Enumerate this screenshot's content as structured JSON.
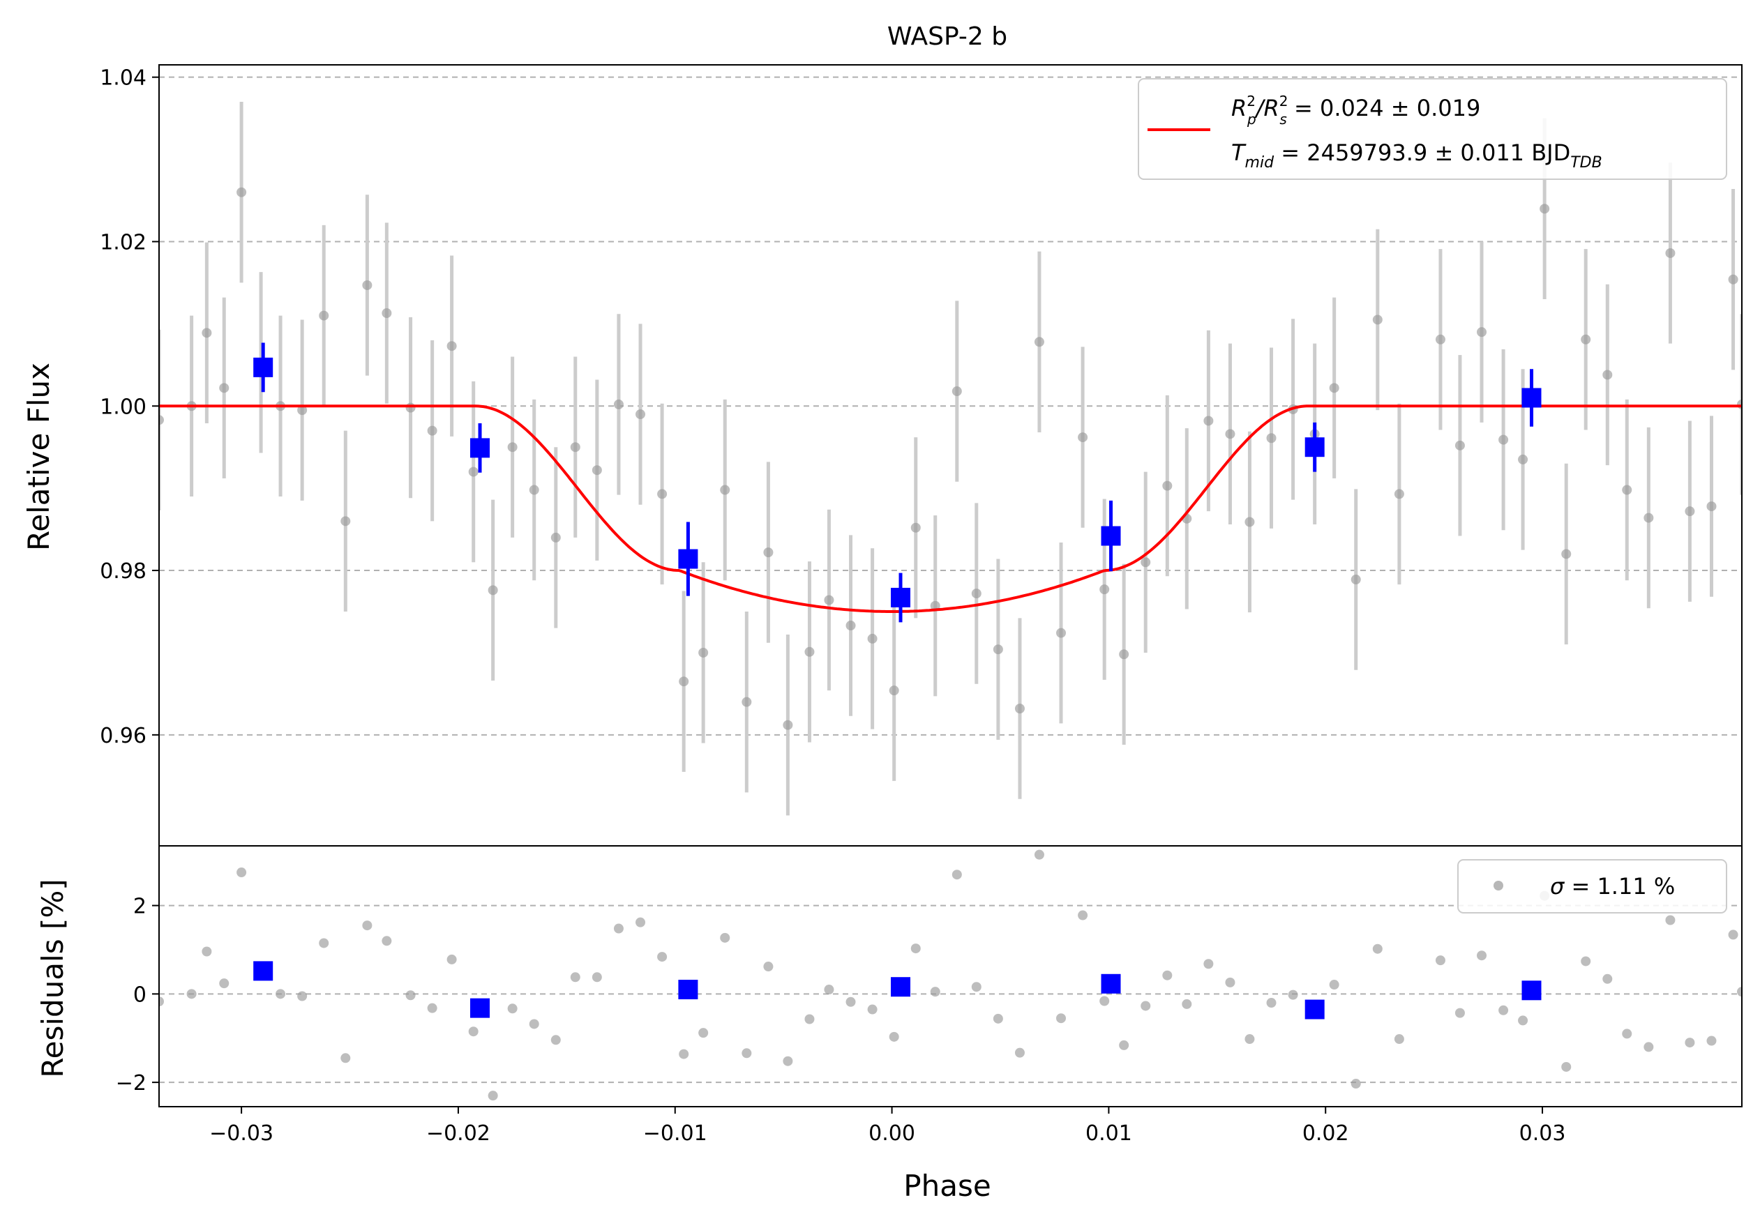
{
  "chart_data": {
    "type": "scatter",
    "title": "WASP-2 b",
    "xlabel": "Phase",
    "xlim": [
      -0.0338,
      0.0392
    ],
    "xticks": [
      {
        "v": -0.03,
        "label": "−0.03"
      },
      {
        "v": -0.02,
        "label": "−0.02"
      },
      {
        "v": -0.01,
        "label": "−0.01"
      },
      {
        "v": 0.0,
        "label": "0.00"
      },
      {
        "v": 0.01,
        "label": "0.01"
      },
      {
        "v": 0.02,
        "label": "0.02"
      },
      {
        "v": 0.03,
        "label": "0.03"
      }
    ],
    "top_panel": {
      "ylabel": "Relative Flux",
      "ylim": [
        0.9465,
        1.0415
      ],
      "yticks": [
        {
          "v": 0.96,
          "label": "0.96"
        },
        {
          "v": 0.98,
          "label": "0.98"
        },
        {
          "v": 1.0,
          "label": "1.00"
        },
        {
          "v": 1.02,
          "label": "1.02"
        },
        {
          "v": 1.04,
          "label": "1.04"
        }
      ],
      "grid": "horizontal-dashed",
      "legend": {
        "position": "top-right",
        "line1": {
          "prefix": "R",
          "sub1": "p",
          "sup1": "2",
          "mid": "/R",
          "sub2": "s",
          "sup2": "2",
          "value": " = 0.024 ± 0.019"
        },
        "line2": {
          "prefix": "T",
          "sub1": "mid",
          "value": " = 2459793.9 ± 0.011 BJD",
          "sub2": "TDB"
        }
      },
      "raw_points": [
        [
          -0.0338,
          0.9983,
          0.011
        ],
        [
          -0.0323,
          1.0,
          0.011
        ],
        [
          -0.0316,
          1.0089,
          0.011
        ],
        [
          -0.0308,
          1.0022,
          0.011
        ],
        [
          -0.03,
          1.026,
          0.011
        ],
        [
          -0.0291,
          1.0053,
          0.011
        ],
        [
          -0.0282,
          1.0,
          0.011
        ],
        [
          -0.0272,
          0.9995,
          0.011
        ],
        [
          -0.0262,
          1.011,
          0.011
        ],
        [
          -0.0252,
          0.986,
          0.011
        ],
        [
          -0.0242,
          1.0147,
          0.011
        ],
        [
          -0.0233,
          1.0113,
          0.011
        ],
        [
          -0.0222,
          0.9998,
          0.011
        ],
        [
          -0.0212,
          0.997,
          0.011
        ],
        [
          -0.0203,
          1.0073,
          0.011
        ],
        [
          -0.0193,
          0.992,
          0.011
        ],
        [
          -0.0184,
          0.9776,
          0.011
        ],
        [
          -0.0175,
          0.995,
          0.011
        ],
        [
          -0.0165,
          0.9898,
          0.011
        ],
        [
          -0.0155,
          0.984,
          0.011
        ],
        [
          -0.0146,
          0.995,
          0.011
        ],
        [
          -0.0136,
          0.9922,
          0.011
        ],
        [
          -0.0126,
          1.0002,
          0.011
        ],
        [
          -0.0116,
          0.999,
          0.011
        ],
        [
          -0.0106,
          0.9893,
          0.011
        ],
        [
          -0.0096,
          0.9665,
          0.011
        ],
        [
          -0.0087,
          0.97,
          0.011
        ],
        [
          -0.0077,
          0.9898,
          0.011
        ],
        [
          -0.0067,
          0.964,
          0.011
        ],
        [
          -0.0057,
          0.9822,
          0.011
        ],
        [
          -0.0048,
          0.9612,
          0.011
        ],
        [
          -0.0038,
          0.9701,
          0.011
        ],
        [
          -0.0029,
          0.9764,
          0.011
        ],
        [
          -0.0019,
          0.9733,
          0.011
        ],
        [
          -0.0009,
          0.9717,
          0.011
        ],
        [
          0.0001,
          0.9654,
          0.011
        ],
        [
          0.0011,
          0.9852,
          0.011
        ],
        [
          0.002,
          0.9757,
          0.011
        ],
        [
          0.003,
          1.0018,
          0.011
        ],
        [
          0.0039,
          0.9772,
          0.011
        ],
        [
          0.0049,
          0.9704,
          0.011
        ],
        [
          0.0059,
          0.9632,
          0.011
        ],
        [
          0.0068,
          1.0078,
          0.011
        ],
        [
          0.0078,
          0.9724,
          0.011
        ],
        [
          0.0088,
          0.9962,
          0.011
        ],
        [
          0.0098,
          0.9777,
          0.011
        ],
        [
          0.0107,
          0.9698,
          0.011
        ],
        [
          0.0117,
          0.981,
          0.011
        ],
        [
          0.0127,
          0.9903,
          0.011
        ],
        [
          0.0136,
          0.9863,
          0.011
        ],
        [
          0.0146,
          0.9982,
          0.011
        ],
        [
          0.0156,
          0.9966,
          0.011
        ],
        [
          0.0165,
          0.9859,
          0.011
        ],
        [
          0.0175,
          0.9961,
          0.011
        ],
        [
          0.0185,
          0.9996,
          0.011
        ],
        [
          0.0195,
          0.9966,
          0.011
        ],
        [
          0.0204,
          1.0022,
          0.011
        ],
        [
          0.0214,
          0.9789,
          0.011
        ],
        [
          0.0224,
          1.0105,
          0.011
        ],
        [
          0.0234,
          0.9893,
          0.011
        ],
        [
          0.0253,
          1.0081,
          0.011
        ],
        [
          0.0262,
          0.9952,
          0.011
        ],
        [
          0.0272,
          1.009,
          0.011
        ],
        [
          0.0282,
          0.9959,
          0.011
        ],
        [
          0.0291,
          0.9935,
          0.011
        ],
        [
          0.0301,
          1.024,
          0.011
        ],
        [
          0.0311,
          0.982,
          0.011
        ],
        [
          0.032,
          1.0081,
          0.011
        ],
        [
          0.033,
          1.0038,
          0.011
        ],
        [
          0.0339,
          0.9898,
          0.011
        ],
        [
          0.0349,
          0.9864,
          0.011
        ],
        [
          0.0359,
          1.0186,
          0.011
        ],
        [
          0.0368,
          0.9872,
          0.011
        ],
        [
          0.0378,
          0.9878,
          0.011
        ],
        [
          0.0388,
          1.0154,
          0.011
        ],
        [
          0.0392,
          1.0002,
          0.011
        ]
      ],
      "binned_points": [
        [
          -0.029,
          1.0047,
          0.003
        ],
        [
          -0.019,
          0.9949,
          0.003
        ],
        [
          -0.0094,
          0.9814,
          0.0045
        ],
        [
          0.0004,
          0.9767,
          0.003
        ],
        [
          0.0101,
          0.9842,
          0.0043
        ],
        [
          0.0195,
          0.995,
          0.003
        ],
        [
          0.0295,
          1.001,
          0.0035
        ]
      ],
      "model": {
        "depth": 0.025,
        "t1": 0.0192,
        "t2": 0.0098,
        "color": "#ff0000"
      }
    },
    "bottom_panel": {
      "ylabel": "Residuals [%]",
      "ylim": [
        -2.55,
        3.35
      ],
      "yticks": [
        {
          "v": -2,
          "label": "−2"
        },
        {
          "v": 0,
          "label": "0"
        },
        {
          "v": 2,
          "label": "2"
        }
      ],
      "grid": "horizontal-dashed",
      "legend": {
        "position": "top-right",
        "symbol": "σ",
        "value": " = 1.11 %"
      },
      "raw_residuals": [
        [
          -0.0338,
          -0.17
        ],
        [
          -0.0323,
          0.0
        ],
        [
          -0.0316,
          0.96
        ],
        [
          -0.0308,
          0.24
        ],
        [
          -0.03,
          2.75
        ],
        [
          -0.0282,
          0.0
        ],
        [
          -0.0272,
          -0.05
        ],
        [
          -0.0262,
          1.15
        ],
        [
          -0.0252,
          -1.45
        ],
        [
          -0.0242,
          1.55
        ],
        [
          -0.0233,
          1.2
        ],
        [
          -0.0222,
          -0.03
        ],
        [
          -0.0212,
          -0.32
        ],
        [
          -0.0203,
          0.78
        ],
        [
          -0.0193,
          -0.85
        ],
        [
          -0.0184,
          -2.3
        ],
        [
          -0.0175,
          -0.33
        ],
        [
          -0.0165,
          -0.68
        ],
        [
          -0.0155,
          -1.04
        ],
        [
          -0.0146,
          0.38
        ],
        [
          -0.0136,
          0.38
        ],
        [
          -0.0126,
          1.48
        ],
        [
          -0.0116,
          1.62
        ],
        [
          -0.0106,
          0.84
        ],
        [
          -0.0096,
          -1.36
        ],
        [
          -0.0087,
          -0.88
        ],
        [
          -0.0077,
          1.27
        ],
        [
          -0.0067,
          -1.34
        ],
        [
          -0.0057,
          0.62
        ],
        [
          -0.0048,
          -1.52
        ],
        [
          -0.0038,
          -0.57
        ],
        [
          -0.0029,
          0.1
        ],
        [
          -0.0019,
          -0.18
        ],
        [
          -0.0009,
          -0.35
        ],
        [
          0.0001,
          -0.97
        ],
        [
          0.0011,
          1.03
        ],
        [
          0.002,
          0.05
        ],
        [
          0.003,
          2.7
        ],
        [
          0.0039,
          0.16
        ],
        [
          0.0049,
          -0.56
        ],
        [
          0.0059,
          -1.33
        ],
        [
          0.0068,
          3.15
        ],
        [
          0.0078,
          -0.55
        ],
        [
          0.0088,
          1.78
        ],
        [
          0.0098,
          -0.16
        ],
        [
          0.0107,
          -1.16
        ],
        [
          0.0117,
          -0.27
        ],
        [
          0.0127,
          0.42
        ],
        [
          0.0136,
          -0.23
        ],
        [
          0.0146,
          0.68
        ],
        [
          0.0156,
          0.26
        ],
        [
          0.0165,
          -1.02
        ],
        [
          0.0175,
          -0.2
        ],
        [
          0.0185,
          -0.02
        ],
        [
          0.0204,
          0.21
        ],
        [
          0.0214,
          -2.03
        ],
        [
          0.0224,
          1.02
        ],
        [
          0.0234,
          -1.02
        ],
        [
          0.0253,
          0.76
        ],
        [
          0.0262,
          -0.43
        ],
        [
          0.0272,
          0.87
        ],
        [
          0.0282,
          -0.37
        ],
        [
          0.0291,
          -0.6
        ],
        [
          0.0301,
          2.22
        ],
        [
          0.0311,
          -1.65
        ],
        [
          0.032,
          0.74
        ],
        [
          0.033,
          0.34
        ],
        [
          0.0339,
          -0.9
        ],
        [
          0.0349,
          -1.2
        ],
        [
          0.0359,
          1.67
        ],
        [
          0.0368,
          -1.1
        ],
        [
          0.0378,
          -1.06
        ],
        [
          0.0388,
          1.34
        ],
        [
          0.0392,
          0.05
        ]
      ],
      "binned_residuals": [
        [
          -0.029,
          0.52
        ],
        [
          -0.019,
          -0.32
        ],
        [
          -0.0094,
          0.1
        ],
        [
          0.0004,
          0.16
        ],
        [
          0.0101,
          0.23
        ],
        [
          0.0195,
          -0.35
        ],
        [
          0.0295,
          0.08
        ]
      ]
    },
    "colors": {
      "raw": "#999999",
      "raw_err": "#cccccc",
      "binned": "#0000ff",
      "model": "#ff0000",
      "grid": "#b0b0b0"
    }
  }
}
